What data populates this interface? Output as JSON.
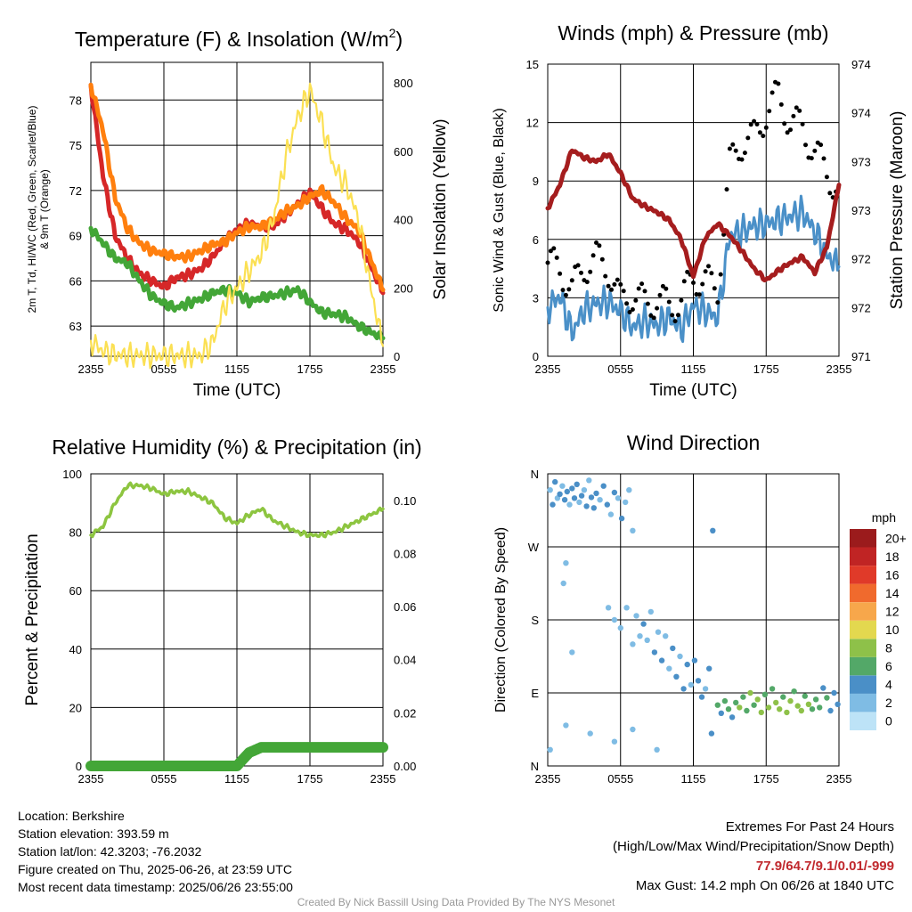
{
  "chart_data": [
    {
      "type": "line",
      "title": "Temperature (F) & Insolation (W/m²)",
      "title_main": "Temperature (F) & Insolation (W/m",
      "title_sup": "2",
      "title_end": ")",
      "xlabel": "Time (UTC)",
      "ylabel_lines": [
        "2m T, Td, HI/WC (Red, Green, Scarlet/Blue)",
        "& 9m T (Orange)"
      ],
      "y2label": "Solar Insolation (Yellow)",
      "x_ticks": [
        "2355",
        "0555",
        "1155",
        "1755",
        "2355"
      ],
      "ylim": [
        61,
        80.5
      ],
      "y_ticks": [
        63,
        66,
        69,
        72,
        75,
        78
      ],
      "y2lim": [
        0,
        860
      ],
      "y2_ticks": [
        0,
        200,
        400,
        600,
        800
      ],
      "x": [
        0,
        1,
        2,
        3,
        4,
        5,
        6,
        7,
        8,
        9,
        10,
        11,
        12,
        13,
        14,
        15,
        16,
        17,
        18,
        19,
        20,
        21,
        22,
        23,
        24
      ],
      "series": [
        {
          "color": "#d62728",
          "values": [
            79,
            73,
            69,
            67.5,
            66.5,
            66,
            65.6,
            66.2,
            66.4,
            66.8,
            67.6,
            68.6,
            69.4,
            69.8,
            69.6,
            69.6,
            70.4,
            71.1,
            71.9,
            70.8,
            69.8,
            69.4,
            68.6,
            67,
            65.2
          ]
        },
        {
          "color": "#ff7f0e",
          "values": [
            79,
            76,
            71.5,
            69.5,
            68.5,
            68,
            67.8,
            67.6,
            67.6,
            68,
            68.4,
            68.6,
            69.2,
            69.6,
            69.6,
            70,
            70.6,
            71,
            71.6,
            72,
            71.2,
            70.1,
            69.4,
            67.4,
            65.4
          ]
        },
        {
          "color": "#43a637",
          "values": [
            69.5,
            68.5,
            67.5,
            67.2,
            66,
            65,
            64.5,
            64.2,
            64.5,
            64.8,
            65.2,
            65.4,
            65.2,
            64.6,
            64.9,
            65,
            65.2,
            65.4,
            64.6,
            63.9,
            63.8,
            63.6,
            63,
            62.6,
            62.2
          ]
        },
        {
          "color": "#fbe053",
          "axis": "y2",
          "values": [
            45,
            15,
            5,
            2,
            2,
            2,
            2,
            2,
            2,
            2,
            40,
            150,
            200,
            250,
            300,
            400,
            580,
            700,
            780,
            680,
            550,
            500,
            400,
            200,
            30
          ]
        }
      ]
    },
    {
      "type": "scatter",
      "title": "Winds (mph) & Pressure (mb)",
      "xlabel": "Time (UTC)",
      "ylabel": "Sonic Wind & Gust (Blue, Black)",
      "y2label": "Station Pressure (Maroon)",
      "x_ticks": [
        "2355",
        "0555",
        "1155",
        "1755",
        "2355"
      ],
      "ylim": [
        0,
        15
      ],
      "y_ticks": [
        0,
        3,
        6,
        9,
        12,
        15
      ],
      "y2_ticks": [
        "971",
        "972",
        "972",
        "973",
        "973",
        "974",
        "974"
      ],
      "x": [
        0,
        1,
        2,
        3,
        4,
        5,
        6,
        7,
        8,
        9,
        10,
        11,
        12,
        13,
        14,
        15,
        16,
        17,
        18,
        19,
        20,
        21,
        22,
        23,
        24
      ],
      "wind": {
        "color": "#4a90c8",
        "values": [
          2.5,
          3.1,
          1.2,
          2.4,
          2.7,
          2.8,
          2.3,
          1.5,
          1.8,
          1.6,
          2,
          1.4,
          2.6,
          2.3,
          2,
          6.2,
          6.4,
          6.7,
          6.8,
          7,
          7.2,
          7.4,
          6.4,
          5.2,
          4.6
        ]
      },
      "gust": {
        "color": "#000000",
        "values": [
          4.8,
          4.5,
          3.4,
          4.6,
          5,
          4.5,
          2.8,
          3.2,
          2.7,
          2.9,
          2.6,
          2.8,
          4.1,
          3.8,
          3.5,
          9.8,
          11,
          11.2,
          12.5,
          13.4,
          12,
          11.8,
          10.4,
          9.6,
          8.2
        ]
      },
      "pressure": {
        "color": "#a51d1e",
        "values": [
          7.6,
          8.8,
          10.6,
          10.2,
          10,
          10.4,
          9.4,
          8.1,
          7.7,
          7.4,
          7,
          6,
          4.1,
          6.1,
          6.8,
          6.2,
          5.4,
          4.5,
          3.9,
          4.4,
          4.8,
          5.1,
          4.3,
          5.6,
          8.8
        ]
      }
    },
    {
      "type": "line",
      "title": "Relative Humidity (%) & Precipitation (in)",
      "ylabel": "Percent & Precipitation",
      "x_ticks": [
        "2355",
        "0555",
        "1155",
        "1755",
        "2355"
      ],
      "ylim": [
        0,
        100
      ],
      "y_ticks": [
        0,
        20,
        40,
        60,
        80,
        100
      ],
      "y2lim": [
        0,
        0.11
      ],
      "y2_ticks": [
        "0.00",
        "0.02",
        "0.04",
        "0.06",
        "0.08",
        "0.10"
      ],
      "x": [
        0,
        1,
        2,
        3,
        4,
        5,
        6,
        7,
        8,
        9,
        10,
        11,
        12,
        13,
        14,
        15,
        16,
        17,
        18,
        19,
        20,
        21,
        22,
        23,
        24
      ],
      "series": [
        {
          "color": "#8dc540",
          "values": [
            79,
            82,
            90,
            96,
            96,
            95,
            93,
            94,
            94,
            92,
            90,
            85,
            83,
            86,
            88,
            84,
            82,
            80,
            79,
            79,
            80,
            82,
            84,
            86,
            88
          ]
        },
        {
          "color": "#43a637",
          "axis": "y2",
          "values": [
            0,
            0,
            0,
            0,
            0,
            0,
            0,
            0,
            0,
            0,
            0,
            0,
            0,
            0.005,
            0.007,
            0.007,
            0.007,
            0.007,
            0.007,
            0.007,
            0.007,
            0.007,
            0.007,
            0.007,
            0.007
          ]
        }
      ]
    },
    {
      "type": "scatter",
      "title": "Wind Direction",
      "ylabel": "Direction (Colored By Speed)",
      "x_ticks": [
        "2355",
        "0555",
        "1155",
        "1755",
        "2355"
      ],
      "y_ticks": [
        "N",
        "E",
        "S",
        "W",
        "N"
      ],
      "ylim": [
        0,
        360
      ],
      "colorbar": {
        "title": "mph",
        "labels": [
          "0",
          "2",
          "4",
          "6",
          "8",
          "10",
          "12",
          "14",
          "16",
          "18",
          "20+"
        ],
        "colors": [
          "#bde3f7",
          "#7fbce4",
          "#4a8fc7",
          "#53a868",
          "#8ec149",
          "#e3d84f",
          "#f7a74b",
          "#f06a2d",
          "#e03a29",
          "#c02424",
          "#9b1b1c"
        ]
      },
      "points": [
        [
          0.2,
          340,
          2
        ],
        [
          0.4,
          322,
          3
        ],
        [
          0.6,
          350,
          3
        ],
        [
          0.8,
          330,
          2
        ],
        [
          1,
          335,
          3
        ],
        [
          1.2,
          345,
          2
        ],
        [
          1.4,
          328,
          4
        ],
        [
          1.6,
          338,
          3
        ],
        [
          1.8,
          322,
          2
        ],
        [
          2,
          342,
          3
        ],
        [
          2.2,
          330,
          4
        ],
        [
          2.4,
          347,
          3
        ],
        [
          2.6,
          325,
          2
        ],
        [
          2.8,
          333,
          3
        ],
        [
          3,
          340,
          2
        ],
        [
          3.2,
          320,
          3
        ],
        [
          3.4,
          352,
          2
        ],
        [
          3.6,
          331,
          3
        ],
        [
          3.8,
          318,
          4
        ],
        [
          4,
          336,
          3
        ],
        [
          4.3,
          328,
          2
        ],
        [
          4.6,
          345,
          3
        ],
        [
          4.9,
          322,
          3
        ],
        [
          5.2,
          310,
          2
        ],
        [
          5.5,
          337,
          3
        ],
        [
          5.8,
          330,
          2
        ],
        [
          6.1,
          305,
          3
        ],
        [
          6.4,
          325,
          2
        ],
        [
          6.7,
          340,
          1
        ],
        [
          7,
          290,
          1
        ],
        [
          1.3,
          225,
          1
        ],
        [
          1.5,
          250,
          1
        ],
        [
          2,
          140,
          1
        ],
        [
          5,
          195,
          2
        ],
        [
          5.5,
          180,
          1
        ],
        [
          6,
          170,
          2
        ],
        [
          6.5,
          195,
          2
        ],
        [
          7,
          150,
          1
        ],
        [
          7.3,
          185,
          2
        ],
        [
          7.6,
          160,
          2
        ],
        [
          7.9,
          175,
          3
        ],
        [
          8.2,
          155,
          2
        ],
        [
          8.5,
          190,
          2
        ],
        [
          8.8,
          140,
          3
        ],
        [
          9.1,
          165,
          2
        ],
        [
          9.4,
          130,
          3
        ],
        [
          9.7,
          160,
          2
        ],
        [
          10,
          120,
          2
        ],
        [
          10.3,
          145,
          3
        ],
        [
          10.6,
          110,
          3
        ],
        [
          10.9,
          135,
          2
        ],
        [
          11.2,
          95,
          3
        ],
        [
          11.5,
          125,
          3
        ],
        [
          11.8,
          100,
          2
        ],
        [
          12.1,
          130,
          3
        ],
        [
          12.4,
          105,
          4
        ],
        [
          12.7,
          85,
          3
        ],
        [
          13,
          95,
          2
        ],
        [
          13.3,
          120,
          3
        ],
        [
          13.6,
          290,
          4
        ],
        [
          0.2,
          20,
          1
        ],
        [
          1.5,
          50,
          1
        ],
        [
          3.5,
          40,
          1
        ],
        [
          5.5,
          30,
          1
        ],
        [
          7,
          45,
          1
        ],
        [
          9,
          20,
          1
        ],
        [
          13.5,
          40,
          3
        ],
        [
          14,
          75,
          5
        ],
        [
          14.3,
          65,
          4
        ],
        [
          14.6,
          80,
          6
        ],
        [
          14.9,
          70,
          5
        ],
        [
          15.2,
          60,
          4
        ],
        [
          15.5,
          78,
          6
        ],
        [
          15.8,
          72,
          7
        ],
        [
          16.1,
          85,
          6
        ],
        [
          16.4,
          68,
          5
        ],
        [
          16.7,
          90,
          7
        ],
        [
          17,
          75,
          6
        ],
        [
          17.3,
          82,
          8
        ],
        [
          17.6,
          66,
          7
        ],
        [
          17.9,
          88,
          6
        ],
        [
          18.2,
          72,
          7
        ],
        [
          18.5,
          95,
          6
        ],
        [
          18.8,
          78,
          7
        ],
        [
          19.1,
          70,
          8
        ],
        [
          19.4,
          85,
          6
        ],
        [
          19.7,
          66,
          7
        ],
        [
          20,
          80,
          8
        ],
        [
          20.3,
          92,
          6
        ],
        [
          20.6,
          74,
          7
        ],
        [
          20.9,
          68,
          7
        ],
        [
          21.2,
          86,
          6
        ],
        [
          21.5,
          76,
          7
        ],
        [
          21.8,
          70,
          6
        ],
        [
          22.1,
          82,
          5
        ],
        [
          22.4,
          72,
          6
        ],
        [
          22.7,
          96,
          4
        ],
        [
          23,
          84,
          5
        ],
        [
          23.3,
          68,
          3
        ],
        [
          23.6,
          90,
          4
        ],
        [
          23.9,
          76,
          3
        ]
      ]
    }
  ],
  "info": {
    "location": "Location: Berkshire",
    "elevation": "Station elevation: 393.59 m",
    "latlon": "Station lat/lon: 42.3203; -76.2032",
    "created": "Figure created on Thu, 2025-06-26, at 23:59 UTC",
    "recent": "Most recent data timestamp: 2025/06/26 23:55:00"
  },
  "extremes": {
    "heading": "Extremes For Past 24 Hours",
    "legend": "(High/Low/Max Wind/Precipitation/Snow Depth)",
    "values": "77.9/64.7/9.1/0.01/-999",
    "gust": "Max Gust: 14.2 mph On 06/26 at 1840 UTC"
  },
  "credit": "Created By Nick Bassill Using Data Provided By The NYS Mesonet"
}
